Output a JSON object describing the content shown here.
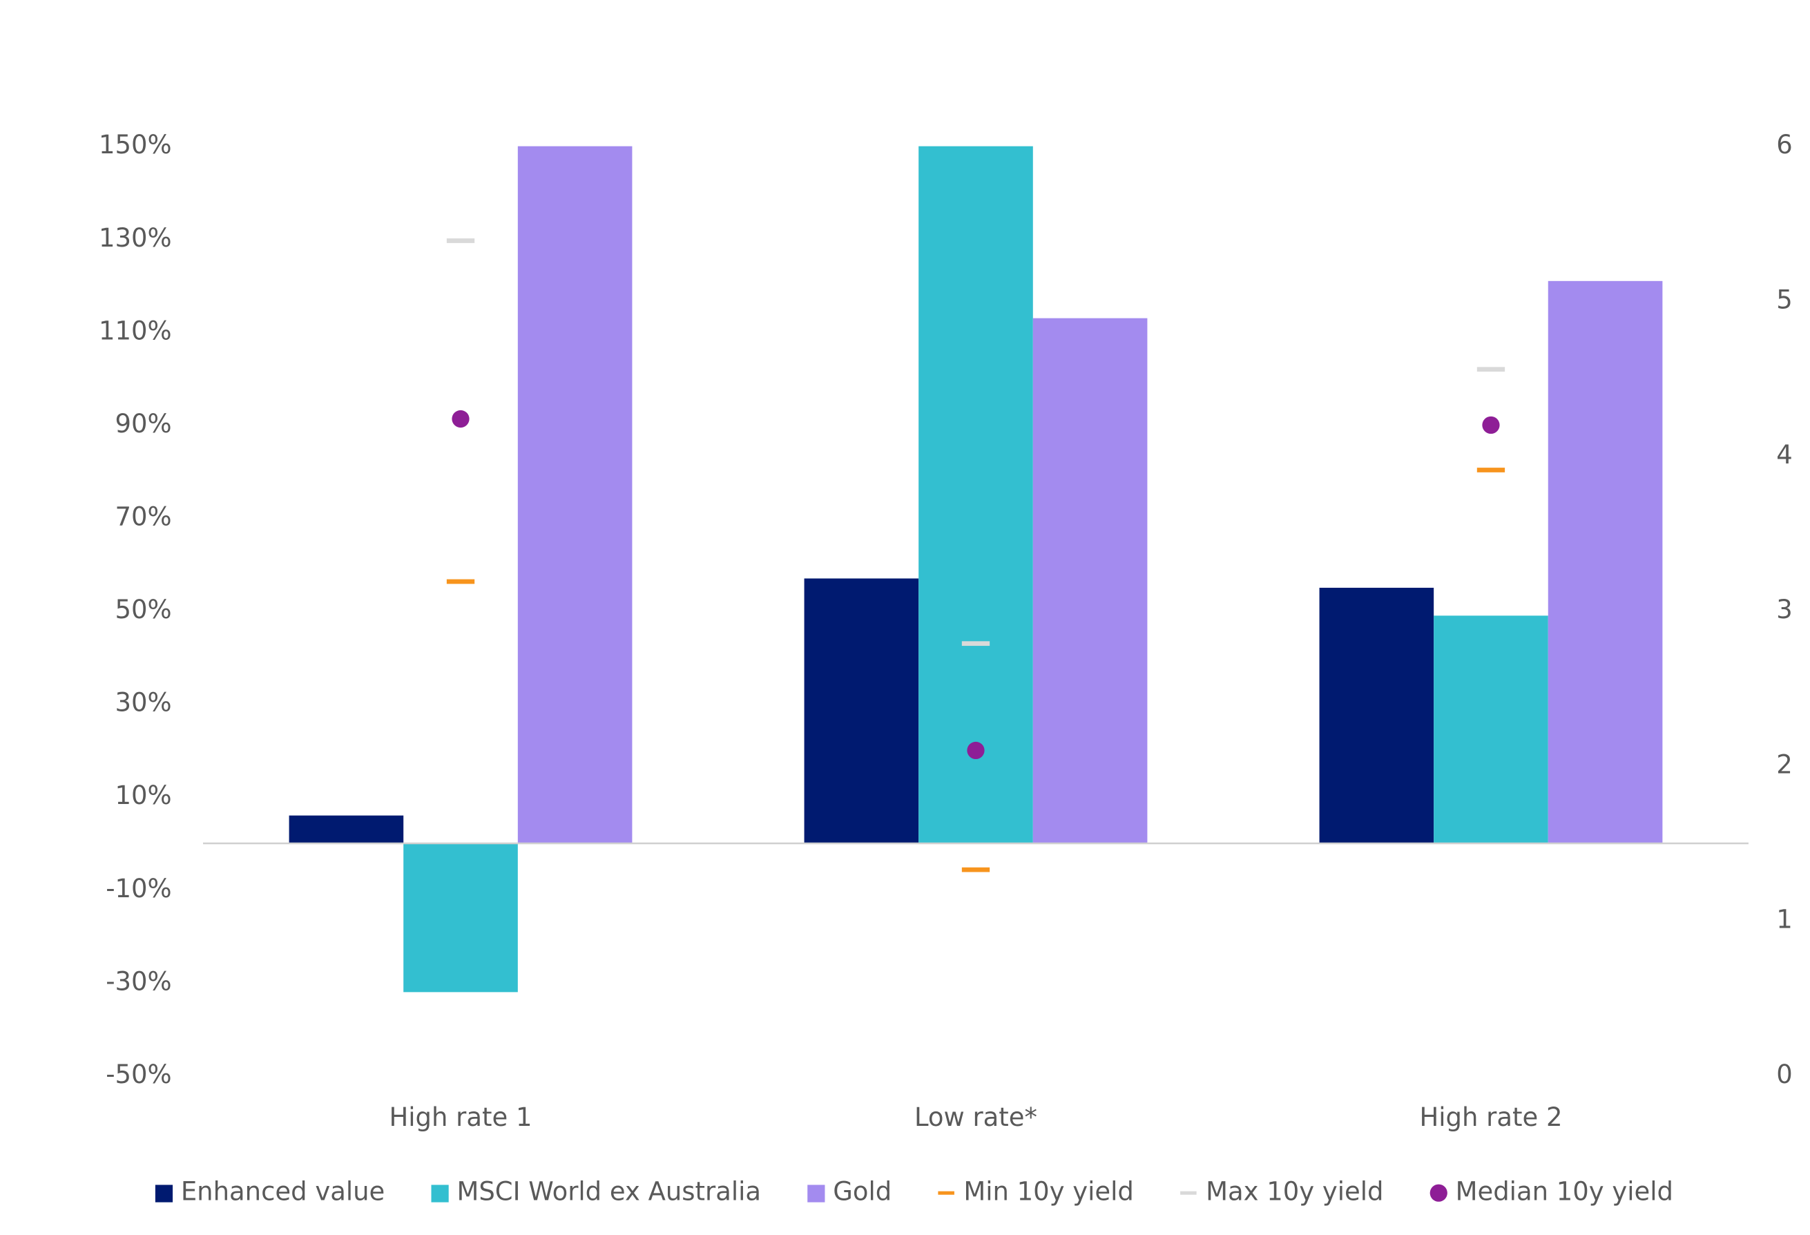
{
  "chart_data": {
    "type": "bar",
    "categories": [
      "High rate 1",
      "Low rate*",
      "High rate 2"
    ],
    "series": [
      {
        "name": "Enhanced value",
        "color": "#001a70",
        "values": [
          6,
          57,
          55
        ]
      },
      {
        "name": "MSCI World ex Australia",
        "color": "#33bfd0",
        "values": [
          -32,
          150,
          49
        ]
      },
      {
        "name": "Gold",
        "color": "#a38bef",
        "values": [
          150,
          113,
          121
        ]
      },
      {
        "name": "Min 10y yield",
        "color": "#f7941d",
        "axis": "y2",
        "marker": "dash",
        "values": [
          3.19,
          1.33,
          3.91
        ]
      },
      {
        "name": "Max 10y yield",
        "color": "#d9d9d9",
        "axis": "y2",
        "marker": "dash",
        "values": [
          5.39,
          2.79,
          4.56
        ]
      },
      {
        "name": "Median 10y yield",
        "color": "#8e1e96",
        "axis": "y2",
        "marker": "circle",
        "values": [
          4.24,
          2.1,
          4.2
        ]
      }
    ],
    "ylim": [
      -50,
      150
    ],
    "yticks": [
      {
        "value": -50,
        "label": "-50%"
      },
      {
        "value": -30,
        "label": "-30%"
      },
      {
        "value": -10,
        "label": "-10%"
      },
      {
        "value": 10,
        "label": "10%"
      },
      {
        "value": 30,
        "label": "30%"
      },
      {
        "value": 50,
        "label": "50%"
      },
      {
        "value": 70,
        "label": "70%"
      },
      {
        "value": 90,
        "label": "90%"
      },
      {
        "value": 110,
        "label": "110%"
      },
      {
        "value": 130,
        "label": "130%"
      },
      {
        "value": 150,
        "label": "150%"
      }
    ],
    "y2lim": [
      0,
      6
    ],
    "y2ticks": [
      0,
      1,
      2,
      3,
      4,
      5,
      6
    ],
    "legend": "bottom"
  }
}
